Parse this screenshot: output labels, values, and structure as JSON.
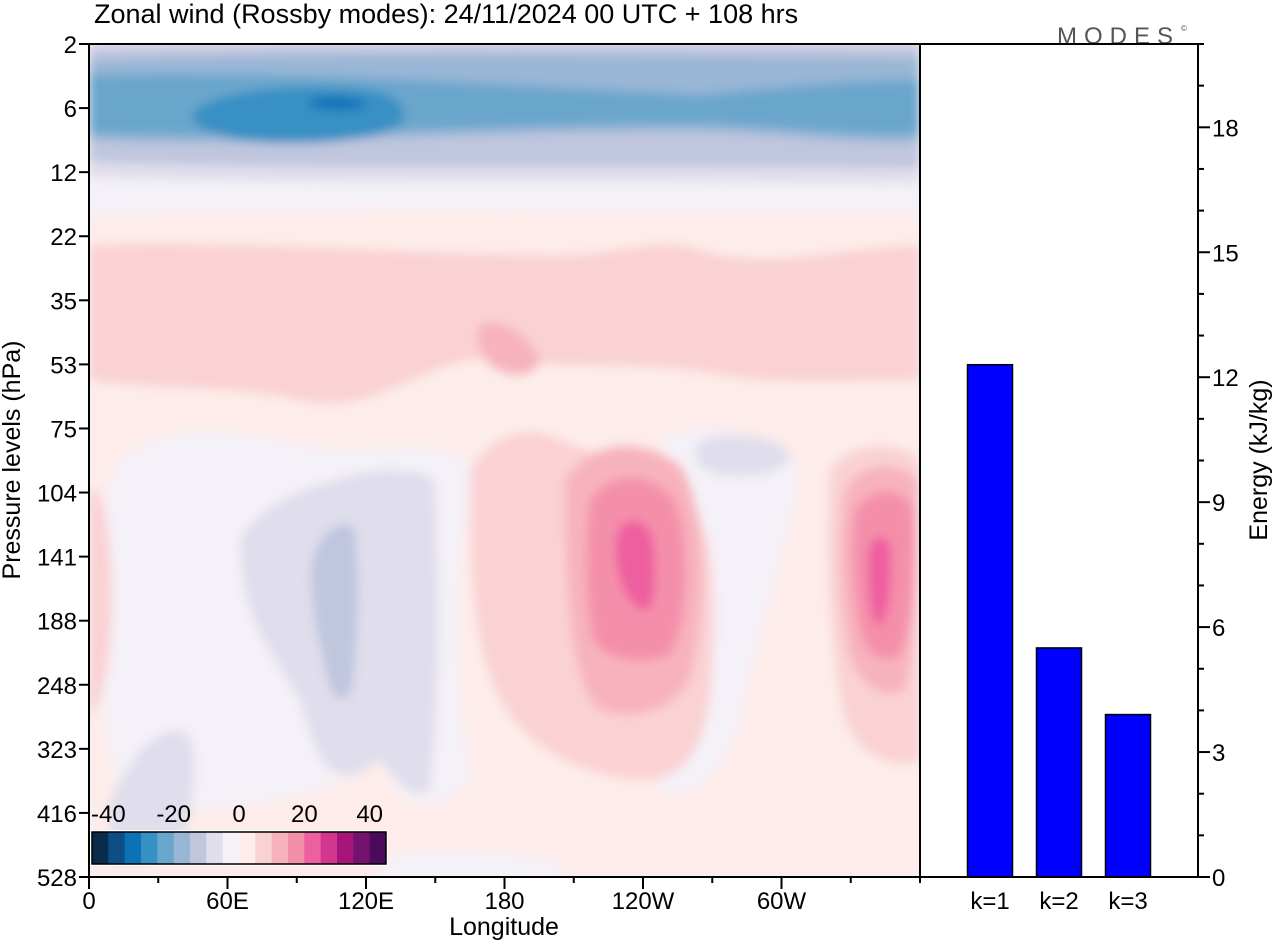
{
  "title": "Zonal wind (Rossby modes):  24/11/2024  00 UTC  + 108 hrs",
  "logo": "MODES",
  "logo_mark": "©",
  "colors": {
    "bar": "#0000ff",
    "negative_scale": [
      "#0b2b4b",
      "#0d4f85",
      "#0b72b8",
      "#3790c4",
      "#6aa6cc",
      "#99b6d6",
      "#c0c6de",
      "#e0deec",
      "#f5f1f8"
    ],
    "positive_scale": [
      "#fdecea",
      "#fad2d3",
      "#f7b3bd",
      "#f48fab",
      "#ee5f9f",
      "#d33590",
      "#a7157c",
      "#73136d",
      "#4a0b5c"
    ]
  },
  "chart_data": [
    {
      "type": "heatmap",
      "xlabel": "Longitude",
      "ylabel": "Pressure levels (hPa)",
      "x_ticks": [
        "0",
        "60E",
        "120E",
        "180",
        "120W",
        "60W"
      ],
      "y_ticks": [
        "2",
        "6",
        "12",
        "22",
        "35",
        "53",
        "75",
        "104",
        "141",
        "188",
        "248",
        "323",
        "416",
        "528"
      ],
      "colorbar": {
        "ticks": [
          "-40",
          "-20",
          "0",
          "20",
          "40"
        ],
        "range": [
          -45,
          45
        ],
        "step": 5
      },
      "features": [
        {
          "kind": "minimum",
          "longitude": 100,
          "level": "6",
          "value": -30
        },
        {
          "kind": "maximum",
          "longitude": 240,
          "level": "141",
          "value": 25
        },
        {
          "kind": "maximum",
          "longitude": 343,
          "level": "141",
          "value": 25
        },
        {
          "kind": "maximum",
          "longitude": 170,
          "level": "53",
          "value": 10
        }
      ]
    },
    {
      "type": "bar",
      "categories": [
        "k=1",
        "k=2",
        "k=3"
      ],
      "values": [
        12.3,
        5.5,
        3.9
      ],
      "ylabel": "Energy (kJ/kg)",
      "y_ticks": [
        "0",
        "3",
        "6",
        "9",
        "12",
        "15",
        "18"
      ],
      "ylim": [
        0,
        20
      ]
    }
  ]
}
